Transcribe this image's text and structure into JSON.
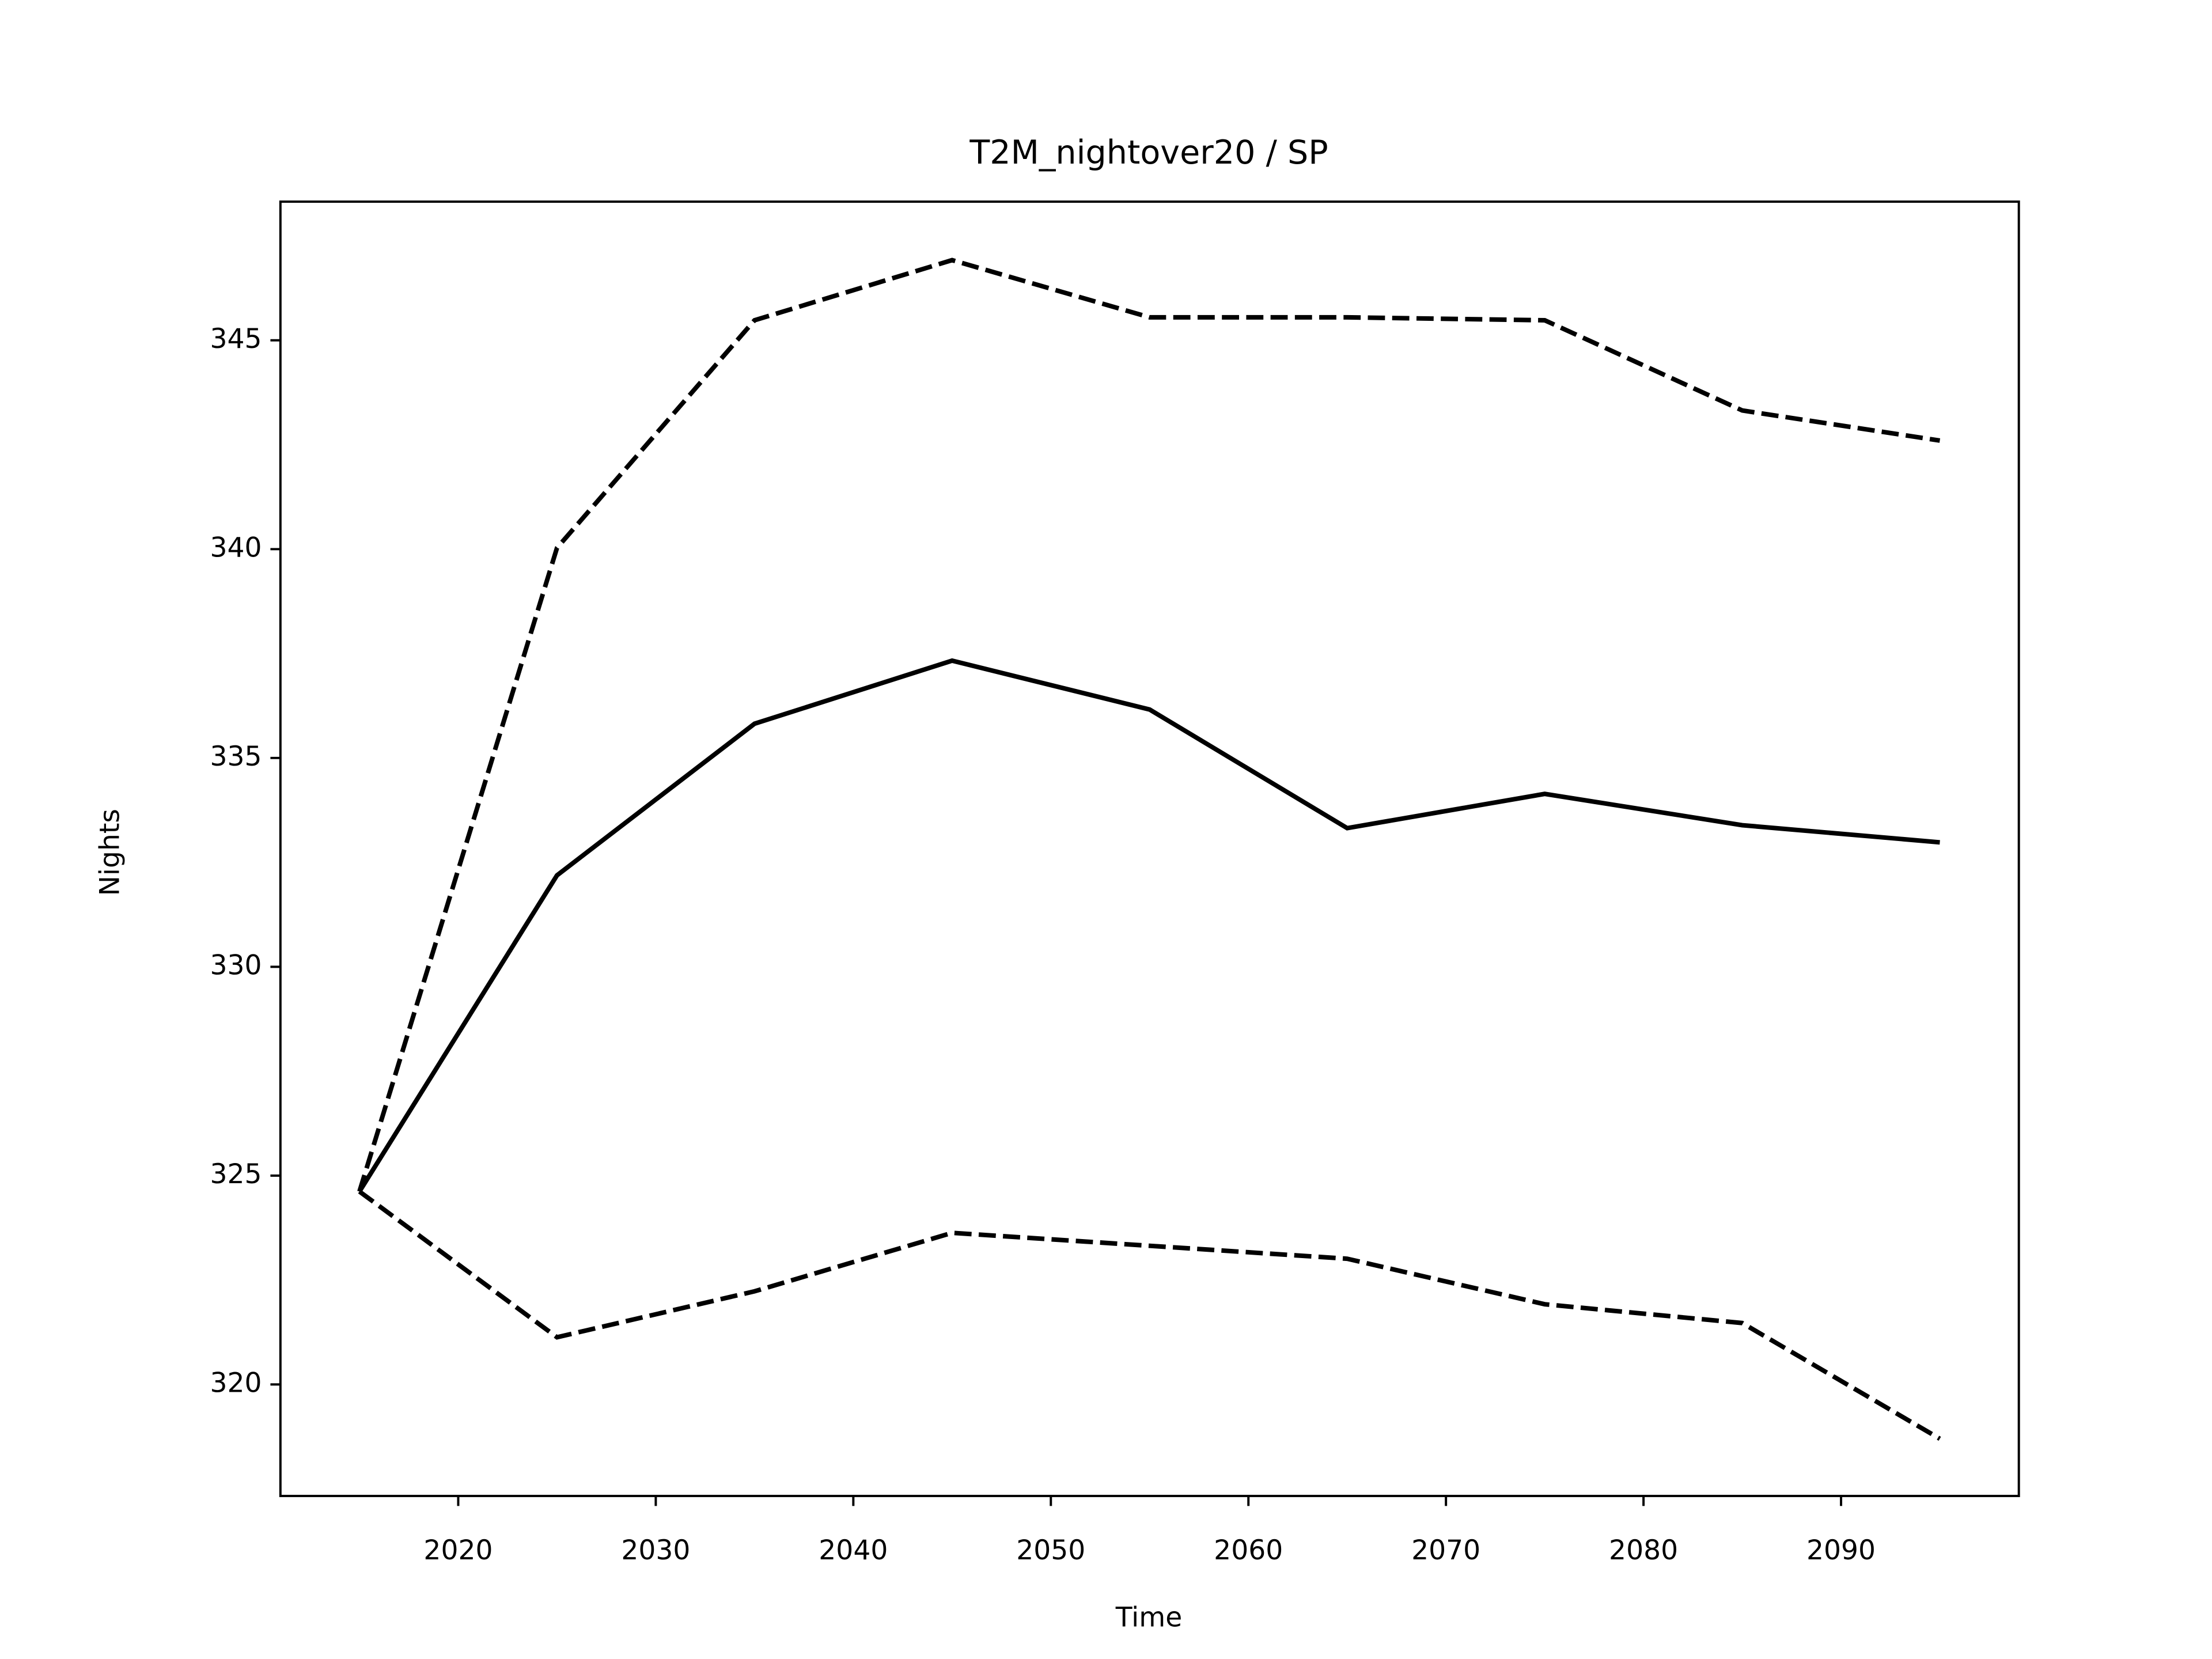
{
  "chart_data": {
    "type": "line",
    "title": "T2M_nightover20 / SP",
    "x_label": "Time",
    "y_label": "Nights",
    "x": [
      2015,
      2025,
      2035,
      2045,
      2055,
      2065,
      2075,
      2085,
      2095
    ],
    "series": [
      {
        "color": "#000000",
        "style": "solid",
        "values": [
          324.62,
          332.19,
          335.82,
          337.33,
          336.16,
          333.32,
          334.14,
          333.39,
          332.98
        ]
      },
      {
        "color": "#000000",
        "style": "dashed",
        "values": [
          324.62,
          340.03,
          345.48,
          346.92,
          345.55,
          345.55,
          345.48,
          343.32,
          342.6
        ]
      },
      {
        "color": "#000000",
        "style": "dashed",
        "values": [
          324.62,
          321.13,
          322.23,
          323.63,
          323.32,
          323.01,
          321.92,
          321.47,
          318.7
        ]
      }
    ],
    "xlim": [
      2011,
      2099
    ],
    "xticks": [
      2020,
      2030,
      2040,
      2050,
      2060,
      2070,
      2080,
      2090
    ],
    "ylim": [
      317.33,
      348.32
    ],
    "yticks": [
      320,
      325,
      330,
      335,
      340,
      345
    ],
    "grid": false
  }
}
